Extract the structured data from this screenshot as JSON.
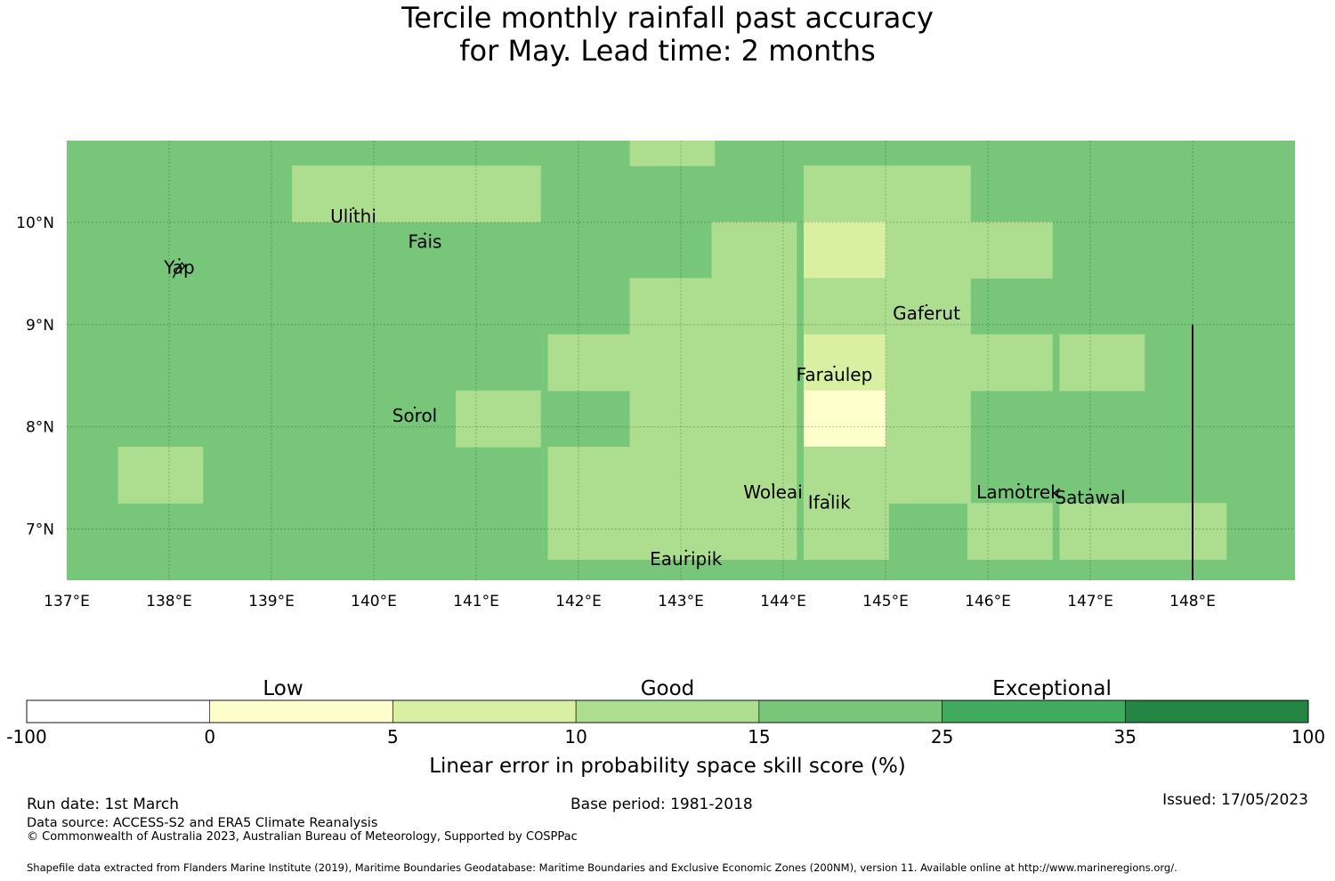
{
  "title": {
    "line1": "Tercile monthly rainfall past accuracy",
    "line2": "for May. Lead time: 2 months"
  },
  "map": {
    "lon_range": [
      137,
      149
    ],
    "lat_range": [
      6.5,
      10.8
    ],
    "lon_ticks": [
      {
        "value": 137,
        "label": "137°E"
      },
      {
        "value": 138,
        "label": "138°E"
      },
      {
        "value": 139,
        "label": "139°E"
      },
      {
        "value": 140,
        "label": "140°E"
      },
      {
        "value": 141,
        "label": "141°E"
      },
      {
        "value": 142,
        "label": "142°E"
      },
      {
        "value": 143,
        "label": "143°E"
      },
      {
        "value": 144,
        "label": "144°E"
      },
      {
        "value": 145,
        "label": "145°E"
      },
      {
        "value": 146,
        "label": "146°E"
      },
      {
        "value": 147,
        "label": "147°E"
      },
      {
        "value": 148,
        "label": "148°E"
      }
    ],
    "lat_ticks": [
      {
        "value": 10,
        "label": "10°N"
      },
      {
        "value": 9,
        "label": "9°N"
      },
      {
        "value": 8,
        "label": "8°N"
      },
      {
        "value": 7,
        "label": "7°N"
      }
    ],
    "grid_cell_size_deg": [
      0.833,
      0.556
    ],
    "background_skill_class": "15-25",
    "cells": [
      {
        "lon": 142.5,
        "lat": 10.55,
        "class": "10-15"
      },
      {
        "lon": 139.2,
        "lat": 10.0,
        "class": "10-15"
      },
      {
        "lon": 140.0,
        "lat": 10.0,
        "class": "10-15"
      },
      {
        "lon": 140.8,
        "lat": 10.0,
        "class": "10-15"
      },
      {
        "lon": 144.2,
        "lat": 10.0,
        "class": "10-15"
      },
      {
        "lon": 145.0,
        "lat": 10.0,
        "class": "10-15"
      },
      {
        "lon": 143.3,
        "lat": 9.45,
        "class": "10-15"
      },
      {
        "lon": 144.2,
        "lat": 9.45,
        "class": "5-10"
      },
      {
        "lon": 145.0,
        "lat": 9.45,
        "class": "10-15"
      },
      {
        "lon": 145.8,
        "lat": 9.45,
        "class": "10-15"
      },
      {
        "lon": 142.5,
        "lat": 8.9,
        "class": "10-15"
      },
      {
        "lon": 143.3,
        "lat": 8.9,
        "class": "10-15"
      },
      {
        "lon": 144.2,
        "lat": 8.9,
        "class": "10-15"
      },
      {
        "lon": 145.0,
        "lat": 8.9,
        "class": "10-15"
      },
      {
        "lon": 141.7,
        "lat": 8.35,
        "class": "10-15"
      },
      {
        "lon": 142.5,
        "lat": 8.35,
        "class": "10-15"
      },
      {
        "lon": 143.3,
        "lat": 8.35,
        "class": "10-15"
      },
      {
        "lon": 144.2,
        "lat": 8.35,
        "class": "5-10"
      },
      {
        "lon": 145.0,
        "lat": 8.35,
        "class": "10-15"
      },
      {
        "lon": 145.8,
        "lat": 8.35,
        "class": "10-15"
      },
      {
        "lon": 146.7,
        "lat": 8.35,
        "class": "10-15"
      },
      {
        "lon": 140.8,
        "lat": 7.8,
        "class": "10-15"
      },
      {
        "lon": 142.5,
        "lat": 7.8,
        "class": "10-15"
      },
      {
        "lon": 143.3,
        "lat": 7.8,
        "class": "10-15"
      },
      {
        "lon": 144.2,
        "lat": 7.8,
        "class": "0-5"
      },
      {
        "lon": 145.0,
        "lat": 7.8,
        "class": "10-15"
      },
      {
        "lon": 137.5,
        "lat": 7.25,
        "class": "10-15"
      },
      {
        "lon": 141.7,
        "lat": 7.25,
        "class": "10-15"
      },
      {
        "lon": 142.5,
        "lat": 7.25,
        "class": "10-15"
      },
      {
        "lon": 143.3,
        "lat": 7.25,
        "class": "10-15"
      },
      {
        "lon": 144.2,
        "lat": 7.25,
        "class": "10-15"
      },
      {
        "lon": 145.0,
        "lat": 7.25,
        "class": "10-15"
      },
      {
        "lon": 141.7,
        "lat": 6.7,
        "class": "10-15"
      },
      {
        "lon": 142.5,
        "lat": 6.7,
        "class": "10-15"
      },
      {
        "lon": 143.3,
        "lat": 6.7,
        "class": "10-15"
      },
      {
        "lon": 144.2,
        "lat": 6.7,
        "class": "10-15"
      },
      {
        "lon": 145.8,
        "lat": 6.7,
        "class": "10-15"
      },
      {
        "lon": 146.7,
        "lat": 6.7,
        "class": "10-15"
      },
      {
        "lon": 147.5,
        "lat": 6.7,
        "class": "10-15"
      }
    ],
    "eez_boundary_lon": 148,
    "eez_boundary_lat_range": [
      6.5,
      9.0
    ],
    "places": [
      {
        "name": "Ulithi",
        "lon": 139.8,
        "lat": 10.0
      },
      {
        "name": "Fais",
        "lon": 140.5,
        "lat": 9.75
      },
      {
        "name": "Yap",
        "lon": 138.1,
        "lat": 9.5
      },
      {
        "name": "Gaferut",
        "lon": 145.4,
        "lat": 9.05
      },
      {
        "name": "Faraulep",
        "lon": 144.5,
        "lat": 8.45
      },
      {
        "name": "Sorol",
        "lon": 140.4,
        "lat": 8.05
      },
      {
        "name": "Woleai",
        "lon": 143.9,
        "lat": 7.3
      },
      {
        "name": "Ifalik",
        "lon": 144.45,
        "lat": 7.2
      },
      {
        "name": "Lamotrek",
        "lon": 146.3,
        "lat": 7.3
      },
      {
        "name": "Satawal",
        "lon": 147.0,
        "lat": 7.25
      },
      {
        "name": "Eauripik",
        "lon": 143.05,
        "lat": 6.65
      }
    ]
  },
  "legend": {
    "category_labels": [
      {
        "text": "Low",
        "position": 0.2
      },
      {
        "text": "Good",
        "position": 0.5
      },
      {
        "text": "Exceptional",
        "position": 0.8
      }
    ],
    "boundaries": [
      "-100",
      "0",
      "5",
      "10",
      "15",
      "25",
      "35",
      "100"
    ],
    "classes": [
      {
        "range": "-100-0",
        "color": "#ffffff"
      },
      {
        "range": "0-5",
        "color": "#ffffcc"
      },
      {
        "range": "5-10",
        "color": "#d9f0a3"
      },
      {
        "range": "10-15",
        "color": "#addd8e"
      },
      {
        "range": "15-25",
        "color": "#78c679"
      },
      {
        "range": "25-35",
        "color": "#41ab5d"
      },
      {
        "range": "35-100",
        "color": "#238443"
      }
    ],
    "axis_label": "Linear error in probability space skill score (%)"
  },
  "footer": {
    "run_date": "Run date: 1st March",
    "base_period": "Base period: 1981-2018",
    "issued": "Issued: 17/05/2023",
    "data_source": "Data source: ACCESS-S2 and ERA5 Climate Reanalysis",
    "copyright": "© Commonwealth of Australia 2023, Australian Bureau of Meteorology, Supported by COSPPac",
    "shapefile": "Shapefile data extracted from Flanders Marine Institute (2019), Maritime Boundaries Geodatabase: Maritime Boundaries and Exclusive Economic Zones (200NM), version 11. Available online at http://www.marineregions.org/."
  }
}
